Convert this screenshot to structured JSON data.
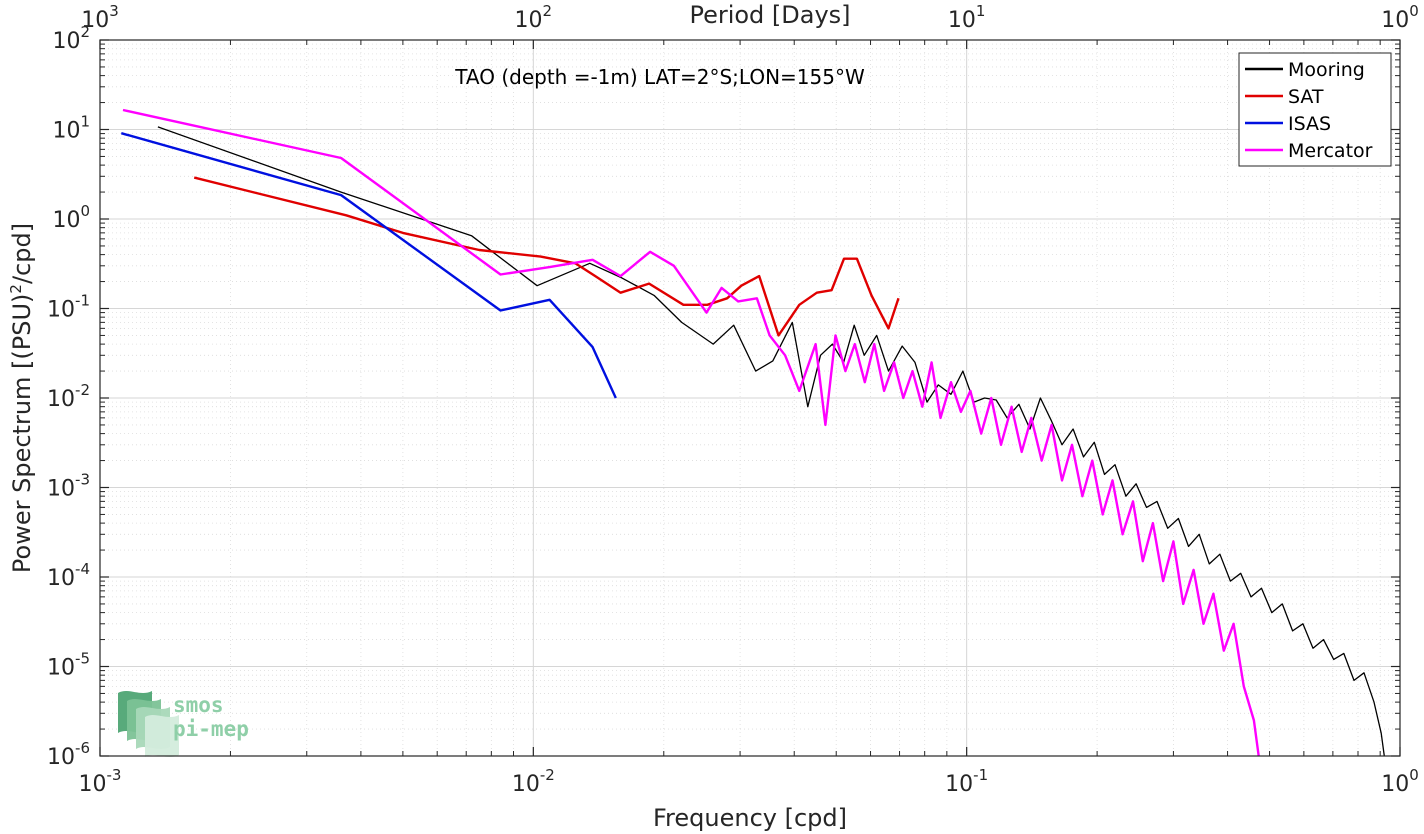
{
  "chart_data": {
    "type": "line",
    "title": "TAO (depth =-1m) LAT=2°S;LON=155°W",
    "xlabel": "Frequency [cpd]",
    "ylabel": "Power Spectrum [(PSU)",
    "ylabel_sup": "2",
    "ylabel_suffix": "/cpd]",
    "x2label": "Period [Days]",
    "xscale": "log",
    "yscale": "log",
    "xlim": [
      0.001,
      1
    ],
    "ylim": [
      1e-06,
      100
    ],
    "grid": true,
    "legend_position": "top-right",
    "x_ticks": [
      {
        "value": 0.001,
        "base": "10",
        "exp": "-3"
      },
      {
        "value": 0.01,
        "base": "10",
        "exp": "-2"
      },
      {
        "value": 0.1,
        "base": "10",
        "exp": "-1"
      },
      {
        "value": 1,
        "base": "10",
        "exp": "0"
      }
    ],
    "x2_ticks": [
      {
        "value": 0.001,
        "base": "10",
        "exp": "3"
      },
      {
        "value": 0.01,
        "base": "10",
        "exp": "2"
      },
      {
        "value": 0.1,
        "base": "10",
        "exp": "1"
      },
      {
        "value": 1,
        "base": "10",
        "exp": "0"
      }
    ],
    "y_ticks": [
      {
        "value": 1e-06,
        "base": "10",
        "exp": "-6"
      },
      {
        "value": 1e-05,
        "base": "10",
        "exp": "-5"
      },
      {
        "value": 0.0001,
        "base": "10",
        "exp": "-4"
      },
      {
        "value": 0.001,
        "base": "10",
        "exp": "-3"
      },
      {
        "value": 0.01,
        "base": "10",
        "exp": "-2"
      },
      {
        "value": 0.1,
        "base": "10",
        "exp": "-1"
      },
      {
        "value": 1,
        "base": "10",
        "exp": "0"
      },
      {
        "value": 10,
        "base": "10",
        "exp": "1"
      },
      {
        "value": 100,
        "base": "10",
        "exp": "2"
      }
    ],
    "series": [
      {
        "name": "Mooring",
        "color": "#000000",
        "x": [
          0.00136,
          0.0036,
          0.0072,
          0.0081,
          0.0102,
          0.0135,
          0.016,
          0.019,
          0.022,
          0.026,
          0.029,
          0.0326,
          0.0357,
          0.0396,
          0.043,
          0.046,
          0.049,
          0.052,
          0.055,
          0.058,
          0.062,
          0.066,
          0.071,
          0.076,
          0.081,
          0.086,
          0.092,
          0.098,
          0.104,
          0.11,
          0.117,
          0.124,
          0.132,
          0.14,
          0.148,
          0.157,
          0.166,
          0.176,
          0.186,
          0.197,
          0.208,
          0.22,
          0.233,
          0.246,
          0.26,
          0.275,
          0.291,
          0.308,
          0.325,
          0.344,
          0.363,
          0.384,
          0.406,
          0.429,
          0.453,
          0.479,
          0.506,
          0.535,
          0.565,
          0.597,
          0.63,
          0.666,
          0.703,
          0.742,
          0.783,
          0.826,
          0.871,
          0.905,
          0.92
        ],
        "y": [
          10.7,
          2.0,
          0.65,
          0.42,
          0.18,
          0.32,
          0.22,
          0.14,
          0.07,
          0.04,
          0.065,
          0.02,
          0.026,
          0.07,
          0.008,
          0.03,
          0.04,
          0.025,
          0.065,
          0.03,
          0.05,
          0.02,
          0.038,
          0.025,
          0.009,
          0.014,
          0.011,
          0.02,
          0.009,
          0.01,
          0.0095,
          0.006,
          0.0085,
          0.0045,
          0.01,
          0.0055,
          0.003,
          0.0045,
          0.0022,
          0.0032,
          0.0014,
          0.0018,
          0.0008,
          0.0011,
          0.0006,
          0.0007,
          0.00035,
          0.00045,
          0.00022,
          0.0003,
          0.00014,
          0.00018,
          9e-05,
          0.00011,
          6e-05,
          7.5e-05,
          4e-05,
          5e-05,
          2.5e-05,
          3e-05,
          1.6e-05,
          2e-05,
          1.2e-05,
          1.4e-05,
          7e-06,
          8.5e-06,
          4e-06,
          1.8e-06,
          1e-06
        ]
      },
      {
        "name": "SAT",
        "color": "#e00000",
        "x": [
          0.00165,
          0.0037,
          0.005,
          0.0075,
          0.0104,
          0.0125,
          0.0139,
          0.0159,
          0.0185,
          0.0222,
          0.0252,
          0.028,
          0.0302,
          0.0332,
          0.0368,
          0.0411,
          0.0451,
          0.0488,
          0.0521,
          0.0558,
          0.0603,
          0.066,
          0.0696
        ],
        "y": [
          2.9,
          1.1,
          0.7,
          0.45,
          0.38,
          0.32,
          0.23,
          0.15,
          0.19,
          0.11,
          0.11,
          0.13,
          0.18,
          0.23,
          0.05,
          0.11,
          0.15,
          0.16,
          0.36,
          0.36,
          0.14,
          0.06,
          0.13
        ]
      },
      {
        "name": "ISAS",
        "color": "#0010e0",
        "x": [
          0.00112,
          0.0036,
          0.0084,
          0.0109,
          0.0137,
          0.0155
        ],
        "y": [
          9.1,
          1.85,
          0.095,
          0.125,
          0.037,
          0.01
        ]
      },
      {
        "name": "Mercator",
        "color": "#ff00ff",
        "x": [
          0.00113,
          0.0036,
          0.0084,
          0.0109,
          0.0137,
          0.0159,
          0.0186,
          0.0211,
          0.0251,
          0.0272,
          0.0297,
          0.0328,
          0.0351,
          0.0381,
          0.0411,
          0.0448,
          0.0472,
          0.0498,
          0.0525,
          0.0552,
          0.0582,
          0.0612,
          0.0645,
          0.068,
          0.0714,
          0.075,
          0.079,
          0.083,
          0.087,
          0.092,
          0.097,
          0.102,
          0.108,
          0.114,
          0.12,
          0.127,
          0.134,
          0.141,
          0.149,
          0.157,
          0.166,
          0.175,
          0.185,
          0.195,
          0.206,
          0.217,
          0.229,
          0.242,
          0.255,
          0.269,
          0.284,
          0.3,
          0.316,
          0.334,
          0.352,
          0.371,
          0.392,
          0.413,
          0.436,
          0.46,
          0.472
        ],
        "y": [
          16.5,
          4.8,
          0.24,
          0.29,
          0.35,
          0.23,
          0.43,
          0.3,
          0.09,
          0.17,
          0.12,
          0.13,
          0.05,
          0.03,
          0.012,
          0.04,
          0.005,
          0.05,
          0.02,
          0.04,
          0.015,
          0.04,
          0.012,
          0.025,
          0.01,
          0.02,
          0.008,
          0.025,
          0.006,
          0.015,
          0.007,
          0.012,
          0.004,
          0.01,
          0.003,
          0.008,
          0.0025,
          0.006,
          0.002,
          0.005,
          0.0012,
          0.003,
          0.0008,
          0.002,
          0.0005,
          0.0012,
          0.0003,
          0.0007,
          0.00015,
          0.0004,
          9e-05,
          0.00025,
          5e-05,
          0.00012,
          3e-05,
          6.5e-05,
          1.5e-05,
          3e-05,
          6e-06,
          2.5e-06,
          1e-06
        ]
      }
    ]
  },
  "logo": {
    "line1": "smos",
    "line2": "pi-mep",
    "colors": [
      "#4fa574",
      "#7cc296",
      "#a8d8b8",
      "#d3ecdc"
    ]
  }
}
